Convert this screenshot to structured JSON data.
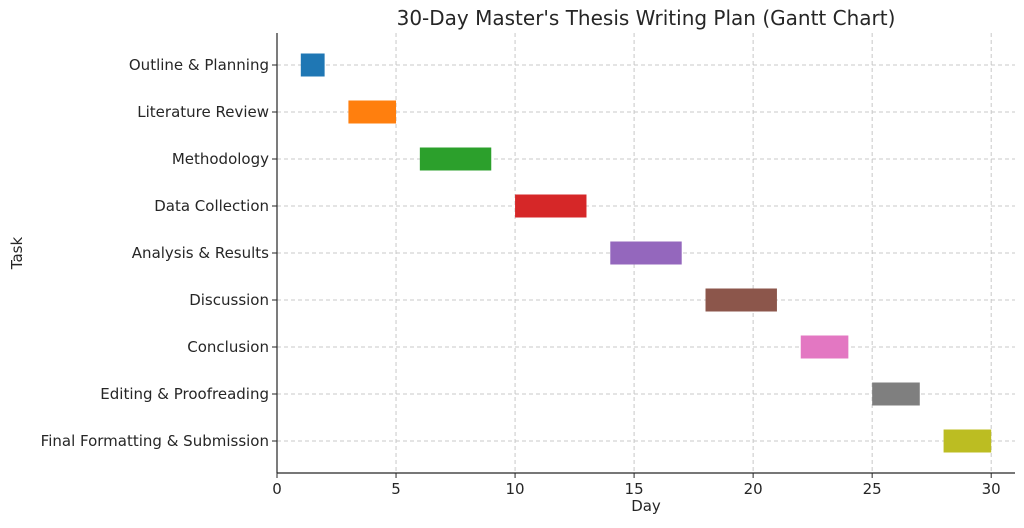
{
  "chart_data": {
    "type": "bar",
    "orientation": "horizontal",
    "chart_style": "gantt",
    "title": "30-Day Master's Thesis Writing Plan (Gantt Chart)",
    "xlabel": "Day",
    "ylabel": "Task",
    "xlim": [
      0,
      31
    ],
    "xticks": [
      0,
      5,
      10,
      15,
      20,
      25,
      30
    ],
    "grid": true,
    "tasks": [
      {
        "name": "Outline & Planning",
        "start": 1,
        "end": 2,
        "color": "#1f77b4"
      },
      {
        "name": "Literature Review",
        "start": 3,
        "end": 5,
        "color": "#ff7f0e"
      },
      {
        "name": "Methodology",
        "start": 6,
        "end": 9,
        "color": "#2ca02c"
      },
      {
        "name": "Data Collection",
        "start": 10,
        "end": 13,
        "color": "#d62728"
      },
      {
        "name": "Analysis & Results",
        "start": 14,
        "end": 17,
        "color": "#9467bd"
      },
      {
        "name": "Discussion",
        "start": 18,
        "end": 21,
        "color": "#8c564b"
      },
      {
        "name": "Conclusion",
        "start": 22,
        "end": 24,
        "color": "#e377c2"
      },
      {
        "name": "Editing & Proofreading",
        "start": 25,
        "end": 27,
        "color": "#7f7f7f"
      },
      {
        "name": "Final Formatting & Submission",
        "start": 28,
        "end": 30,
        "color": "#bcbd22"
      }
    ]
  }
}
